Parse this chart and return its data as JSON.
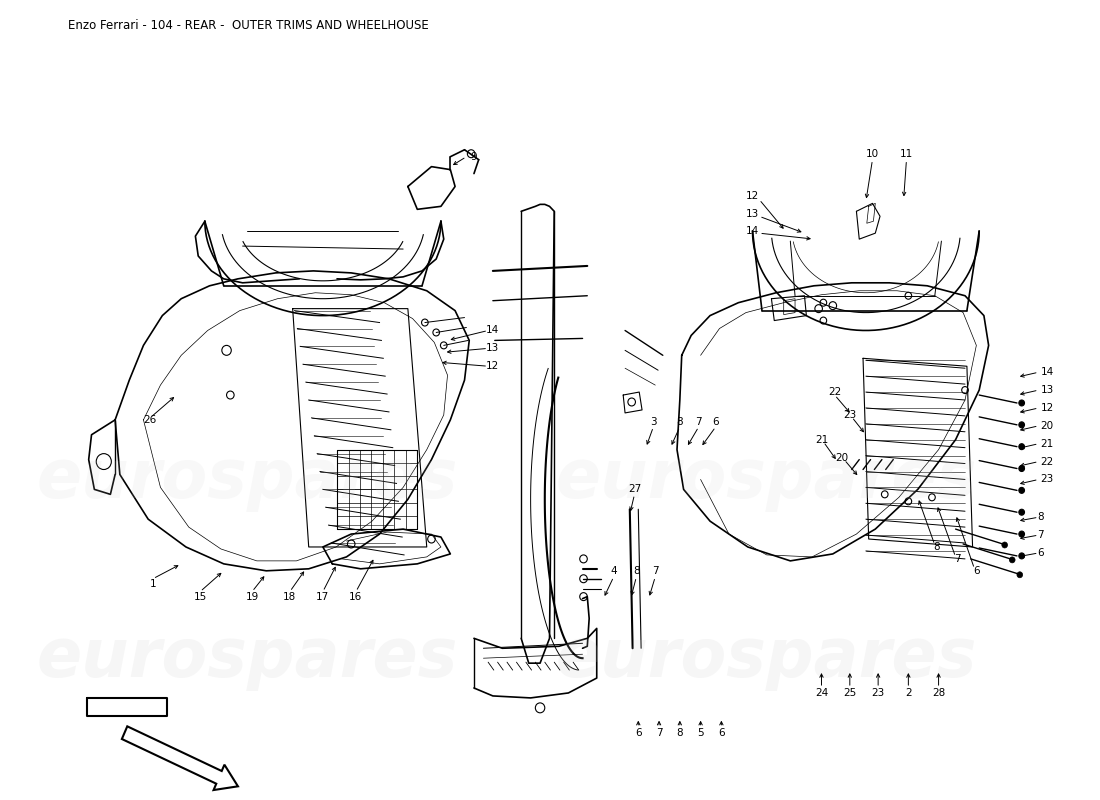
{
  "title": "Enzo Ferrari - 104 - REAR -  OUTER TRIMS AND WHEELHOUSE",
  "title_fontsize": 8.5,
  "title_color": "#000000",
  "background_color": "#ffffff",
  "watermark_text": "eurospares",
  "watermark_color": "#c8c8c8",
  "watermark_fontsize": 48,
  "fig_width": 11.0,
  "fig_height": 8.0,
  "dpi": 100,
  "line_color": "#000000",
  "label_fontsize": 7.5
}
